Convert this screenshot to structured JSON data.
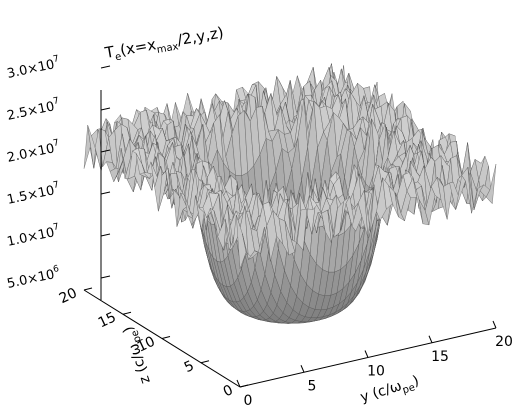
{
  "chart_data": {
    "type": "surface",
    "title": "T_e(x=x_max/2,y,z)",
    "title_parts": {
      "base": "T",
      "sub": "e",
      "pre": "(x=x",
      "sub2": "max",
      "post": "/2,y,z)"
    },
    "xaxis": {
      "label": "y (c/ω_pe)",
      "label_parts": {
        "base": "y (c/ω",
        "sub": "pe",
        "post": ")"
      },
      "range": [
        0,
        20
      ],
      "ticks": [
        "0",
        "5",
        "10",
        "15",
        "20"
      ]
    },
    "yaxis": {
      "label": "z (c/ω_pe)",
      "label_parts": {
        "base": "z (c/ω",
        "sub": "pe",
        "post": ")"
      },
      "range": [
        0,
        20
      ],
      "ticks": [
        "0",
        "5",
        "10",
        "15",
        "20"
      ]
    },
    "zaxis": {
      "label": "",
      "range": [
        5000000,
        30000000
      ],
      "ticks": [
        {
          "value": 5000000,
          "mant": "5.0×10",
          "exp": "6"
        },
        {
          "value": 10000000,
          "mant": "1.0×10",
          "exp": "7"
        },
        {
          "value": 15000000,
          "mant": "1.5×10",
          "exp": "7"
        },
        {
          "value": 20000000,
          "mant": "2.0×10",
          "exp": "7"
        },
        {
          "value": 25000000,
          "mant": "2.5×10",
          "exp": "7"
        },
        {
          "value": 30000000,
          "mant": "3.0×10",
          "exp": "7"
        }
      ]
    },
    "surface": {
      "background_level": 20000000,
      "noise_amplitude": 5000000,
      "well_center": [
        10,
        10
      ],
      "well_radius": 6.5,
      "well_floor": 3000000
    },
    "grid": false,
    "shading": "gray"
  }
}
